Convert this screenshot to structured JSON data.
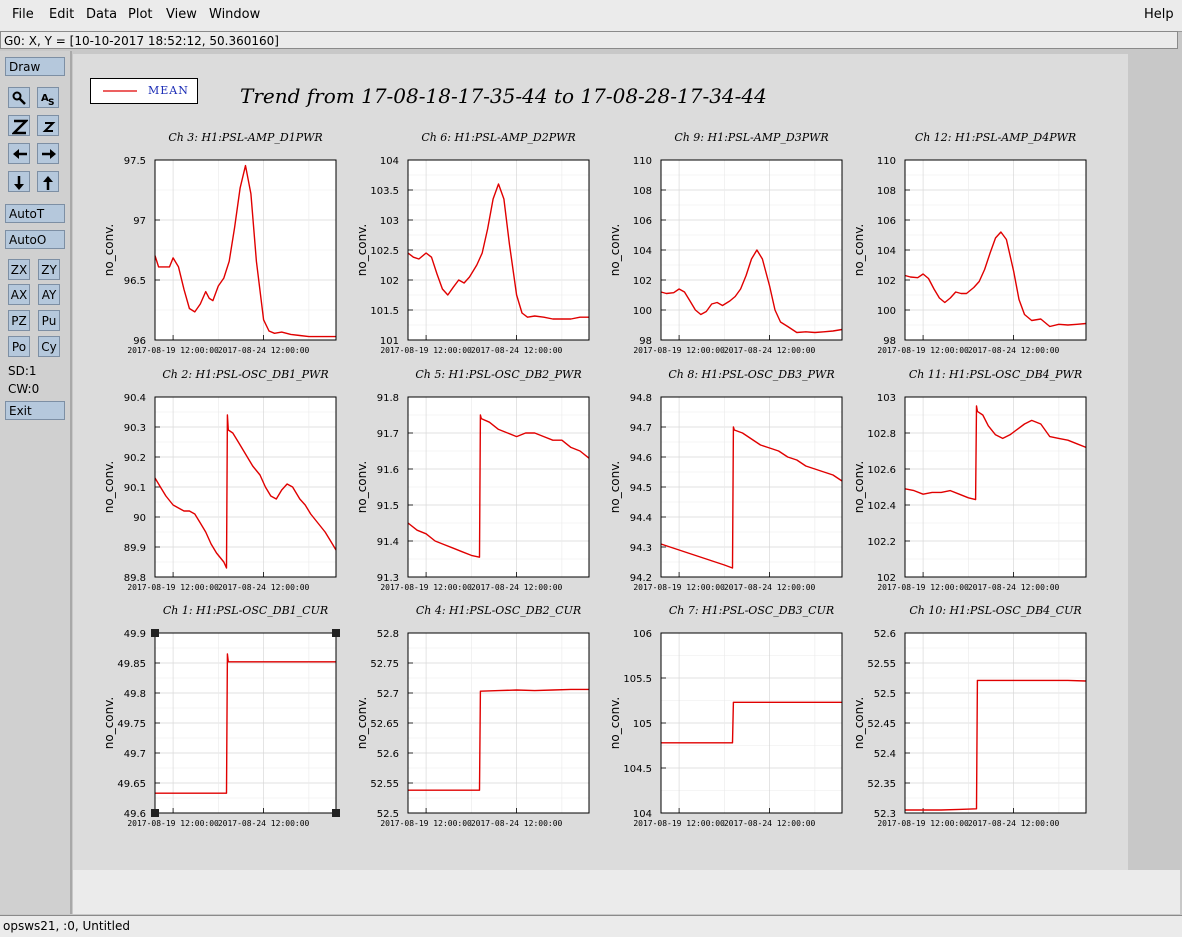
{
  "menu": {
    "file": "File",
    "edit": "Edit",
    "data": "Data",
    "plot": "Plot",
    "view": "View",
    "window": "Window",
    "help": "Help"
  },
  "coord_readout": "G0: X, Y = [10-10-2017 18:52:12, 50.360160]",
  "left_panel": {
    "draw": "Draw",
    "autot": "AutoT",
    "autoo": "AutoO",
    "zx": "ZX",
    "zy": "ZY",
    "ax": "AX",
    "ay": "AY",
    "pz": "PZ",
    "pu": "Pu",
    "po": "Po",
    "cy": "Cy",
    "sd": "SD:1",
    "cw": "CW:0",
    "exit": "Exit",
    "icons": [
      "zoom-glass-icon",
      "text-scale-icon",
      "zoom-z-large-icon",
      "zoom-z-small-icon",
      "arrow-left-icon",
      "arrow-right-icon",
      "arrow-down-icon",
      "arrow-up-icon"
    ]
  },
  "legend": {
    "label": "MEAN",
    "color": "#e00000"
  },
  "status": "opsws21, :0, Untitled",
  "chart_data": {
    "title": "Trend from 17-08-18-17-35-44 to 17-08-28-17-34-44",
    "x_tick_labels": [
      "2017-08-19 12:00:00",
      "2017-08-24 12:00:00"
    ],
    "x_range_days": "2017-08-18 17:35:44 to 2017-08-28 17:34:44",
    "type": "line",
    "grid": true,
    "panels": [
      {
        "title": "Ch 3: H1:PSL-AMP_D1PWR",
        "ylabel": "no_conv.",
        "ylim": [
          95.9,
          97.5
        ],
        "yticks": [
          "97.5",
          "97",
          "96.5",
          "96"
        ],
        "x": [
          0,
          0.2,
          0.5,
          0.8,
          1.0,
          1.3,
          1.6,
          1.9,
          2.2,
          2.5,
          2.8,
          3.0,
          3.2,
          3.5,
          3.8,
          4.1,
          4.4,
          4.7,
          5.0,
          5.3,
          5.6,
          6.0,
          6.3,
          6.6,
          7.0,
          7.5,
          8,
          8.5,
          9,
          9.5,
          10
        ],
        "values": [
          96.65,
          96.55,
          96.55,
          96.55,
          96.63,
          96.55,
          96.35,
          96.18,
          96.15,
          96.22,
          96.33,
          96.27,
          96.25,
          96.38,
          96.45,
          96.6,
          96.9,
          97.25,
          97.45,
          97.2,
          96.6,
          96.08,
          95.98,
          95.96,
          95.97,
          95.95,
          95.94,
          95.93,
          95.93,
          95.93,
          95.93
        ]
      },
      {
        "title": "Ch 6: H1:PSL-AMP_D2PWR",
        "ylabel": "no_conv.",
        "ylim": [
          101,
          104
        ],
        "yticks": [
          "104",
          "103.5",
          "103",
          "102.5",
          "102",
          "101.5",
          "101"
        ],
        "x": [
          0,
          0.3,
          0.6,
          1.0,
          1.3,
          1.6,
          1.9,
          2.2,
          2.5,
          2.8,
          3.1,
          3.4,
          3.8,
          4.1,
          4.4,
          4.7,
          5.0,
          5.3,
          5.6,
          6.0,
          6.3,
          6.6,
          7.0,
          7.5,
          8,
          8.5,
          9,
          9.5,
          10
        ],
        "values": [
          102.45,
          102.38,
          102.35,
          102.45,
          102.38,
          102.1,
          101.85,
          101.75,
          101.88,
          102.0,
          101.95,
          102.05,
          102.25,
          102.45,
          102.85,
          103.35,
          103.6,
          103.35,
          102.6,
          101.75,
          101.45,
          101.38,
          101.4,
          101.38,
          101.35,
          101.35,
          101.35,
          101.38,
          101.38
        ]
      },
      {
        "title": "Ch 9: H1:PSL-AMP_D3PWR",
        "ylabel": "no_conv.",
        "ylim": [
          98,
          110
        ],
        "yticks": [
          "110",
          "108",
          "106",
          "104",
          "102",
          "100",
          "98"
        ],
        "x": [
          0,
          0.3,
          0.7,
          1.0,
          1.3,
          1.6,
          1.9,
          2.2,
          2.5,
          2.8,
          3.1,
          3.4,
          3.8,
          4.1,
          4.4,
          4.7,
          5.0,
          5.3,
          5.6,
          6.0,
          6.3,
          6.6,
          7.0,
          7.5,
          8,
          8.5,
          9,
          9.5,
          10
        ],
        "values": [
          101.2,
          101.1,
          101.15,
          101.4,
          101.2,
          100.6,
          100.0,
          99.7,
          99.9,
          100.4,
          100.5,
          100.3,
          100.6,
          100.9,
          101.4,
          102.3,
          103.4,
          104.0,
          103.4,
          101.6,
          100.0,
          99.2,
          98.9,
          98.5,
          98.55,
          98.5,
          98.55,
          98.6,
          98.7
        ]
      },
      {
        "title": "Ch 12: H1:PSL-AMP_D4PWR",
        "ylabel": "no_conv.",
        "ylim": [
          98,
          110
        ],
        "yticks": [
          "110",
          "108",
          "106",
          "104",
          "102",
          "100",
          "98"
        ],
        "x": [
          0,
          0.3,
          0.7,
          1.0,
          1.3,
          1.6,
          1.9,
          2.2,
          2.5,
          2.8,
          3.1,
          3.4,
          3.8,
          4.1,
          4.4,
          4.7,
          5.0,
          5.3,
          5.6,
          6.0,
          6.3,
          6.6,
          7.0,
          7.5,
          8,
          8.5,
          9,
          9.5,
          10
        ],
        "values": [
          102.3,
          102.2,
          102.15,
          102.4,
          102.1,
          101.4,
          100.8,
          100.5,
          100.8,
          101.2,
          101.1,
          101.1,
          101.5,
          101.9,
          102.7,
          103.8,
          104.8,
          105.2,
          104.7,
          102.6,
          100.7,
          99.7,
          99.3,
          99.4,
          98.9,
          99.05,
          99.0,
          99.05,
          99.1
        ]
      },
      {
        "title": "Ch 2: H1:PSL-OSC_DB1_PWR",
        "ylabel": "no_conv.",
        "ylim": [
          89.8,
          90.4
        ],
        "yticks": [
          "90.4",
          "90.3",
          "90.2",
          "90.1",
          "90",
          "89.9",
          "89.8"
        ],
        "x": [
          0,
          0.3,
          0.6,
          1.0,
          1.3,
          1.6,
          1.9,
          2.2,
          2.5,
          2.8,
          3.1,
          3.4,
          3.8,
          3.95,
          4.0,
          4.05,
          4.3,
          4.6,
          5.0,
          5.4,
          5.8,
          6.1,
          6.4,
          6.7,
          7.0,
          7.3,
          7.6,
          8.0,
          8.3,
          8.6,
          9.0,
          9.4,
          9.7,
          10
        ],
        "values": [
          90.13,
          90.1,
          90.07,
          90.04,
          90.03,
          90.02,
          90.02,
          90.01,
          89.98,
          89.95,
          89.91,
          89.88,
          89.85,
          89.83,
          90.34,
          90.29,
          90.28,
          90.25,
          90.21,
          90.17,
          90.14,
          90.1,
          90.07,
          90.06,
          90.09,
          90.11,
          90.1,
          90.06,
          90.04,
          90.01,
          89.98,
          89.95,
          89.92,
          89.89
        ]
      },
      {
        "title": "Ch 5: H1:PSL-OSC_DB2_PWR",
        "ylabel": "no_conv.",
        "ylim": [
          91.3,
          91.8
        ],
        "yticks": [
          "91.8",
          "91.7",
          "91.6",
          "91.5",
          "91.4",
          "91.3"
        ],
        "x": [
          0,
          0.5,
          1.0,
          1.5,
          2.0,
          2.5,
          3.0,
          3.5,
          3.95,
          4.0,
          4.05,
          4.5,
          5.0,
          5.5,
          6.0,
          6.5,
          7.0,
          7.5,
          8.0,
          8.5,
          9.0,
          9.5,
          10
        ],
        "values": [
          91.45,
          91.43,
          91.42,
          91.4,
          91.39,
          91.38,
          91.37,
          91.36,
          91.355,
          91.75,
          91.74,
          91.73,
          91.71,
          91.7,
          91.69,
          91.7,
          91.7,
          91.69,
          91.68,
          91.68,
          91.66,
          91.65,
          91.63
        ]
      },
      {
        "title": "Ch 8: H1:PSL-OSC_DB3_PWR",
        "ylabel": "no_conv.",
        "ylim": [
          94.2,
          94.8
        ],
        "yticks": [
          "94.8",
          "94.7",
          "94.6",
          "94.5",
          "94.4",
          "94.3",
          "94.2"
        ],
        "x": [
          0,
          0.5,
          1.0,
          1.5,
          2.0,
          2.5,
          3.0,
          3.5,
          3.95,
          4.0,
          4.05,
          4.5,
          5.0,
          5.5,
          6.0,
          6.5,
          7.0,
          7.5,
          8.0,
          8.5,
          9.0,
          9.5,
          10
        ],
        "values": [
          94.31,
          94.3,
          94.29,
          94.28,
          94.27,
          94.26,
          94.25,
          94.24,
          94.23,
          94.7,
          94.69,
          94.68,
          94.66,
          94.64,
          94.63,
          94.62,
          94.6,
          94.59,
          94.57,
          94.56,
          94.55,
          94.54,
          94.52
        ]
      },
      {
        "title": "Ch 11: H1:PSL-OSC_DB4_PWR",
        "ylabel": "no_conv.",
        "ylim": [
          102,
          103
        ],
        "yticks": [
          "103",
          "102.8",
          "102.6",
          "102.4",
          "102.2",
          "102"
        ],
        "x": [
          0,
          0.5,
          1.0,
          1.5,
          2.0,
          2.5,
          3.0,
          3.5,
          3.9,
          3.95,
          4.0,
          4.3,
          4.6,
          5.0,
          5.4,
          5.8,
          6.2,
          6.6,
          7.0,
          7.5,
          8.0,
          8.5,
          9.0,
          9.5,
          10
        ],
        "values": [
          102.49,
          102.48,
          102.46,
          102.47,
          102.47,
          102.48,
          102.46,
          102.44,
          102.43,
          102.95,
          102.92,
          102.9,
          102.84,
          102.79,
          102.77,
          102.79,
          102.82,
          102.85,
          102.87,
          102.85,
          102.78,
          102.77,
          102.76,
          102.74,
          102.72
        ]
      },
      {
        "title": "Ch 1: H1:PSL-OSC_DB1_CUR",
        "ylabel": "no_conv.",
        "ylim": [
          49.6,
          49.9
        ],
        "yticks": [
          "49.9",
          "49.85",
          "49.8",
          "49.75",
          "49.7",
          "49.65",
          "49.6"
        ],
        "x": [
          0,
          1,
          2,
          3,
          3.95,
          4.0,
          4.05,
          5,
          6,
          7,
          8,
          9,
          10
        ],
        "values": [
          49.633,
          49.633,
          49.633,
          49.633,
          49.633,
          49.865,
          49.852,
          49.852,
          49.852,
          49.852,
          49.852,
          49.852,
          49.852
        ]
      },
      {
        "title": "Ch 4: H1:PSL-OSC_DB2_CUR",
        "ylabel": "no_conv.",
        "ylim": [
          52.5,
          52.8
        ],
        "yticks": [
          "52.8",
          "52.75",
          "52.7",
          "52.65",
          "52.6",
          "52.55",
          "52.5"
        ],
        "x": [
          0,
          1,
          2,
          3,
          3.95,
          4.0,
          5,
          6,
          7,
          8,
          9,
          10
        ],
        "values": [
          52.538,
          52.538,
          52.538,
          52.538,
          52.538,
          52.703,
          52.704,
          52.705,
          52.704,
          52.705,
          52.706,
          52.706
        ]
      },
      {
        "title": "Ch 7: H1:PSL-OSC_DB3_CUR",
        "ylabel": "no_conv.",
        "ylim": [
          104,
          106
        ],
        "yticks": [
          "106",
          "105.5",
          "105",
          "104.5",
          "104"
        ],
        "x": [
          0,
          1,
          2,
          3,
          3.95,
          4.0,
          5,
          6,
          7,
          8,
          9,
          10
        ],
        "values": [
          104.78,
          104.78,
          104.78,
          104.78,
          104.78,
          105.23,
          105.23,
          105.23,
          105.23,
          105.23,
          105.23,
          105.23
        ]
      },
      {
        "title": "Ch 10: H1:PSL-OSC_DB4_CUR",
        "ylabel": "no_conv.",
        "ylim": [
          52.3,
          52.6
        ],
        "yticks": [
          "52.6",
          "52.55",
          "52.5",
          "52.45",
          "52.4",
          "52.35",
          "52.3"
        ],
        "x": [
          0,
          1,
          2,
          3,
          3.95,
          4.0,
          5,
          6,
          7,
          8,
          9,
          10
        ],
        "values": [
          52.305,
          52.305,
          52.305,
          52.306,
          52.307,
          52.521,
          52.521,
          52.521,
          52.521,
          52.521,
          52.521,
          52.52
        ]
      }
    ]
  }
}
